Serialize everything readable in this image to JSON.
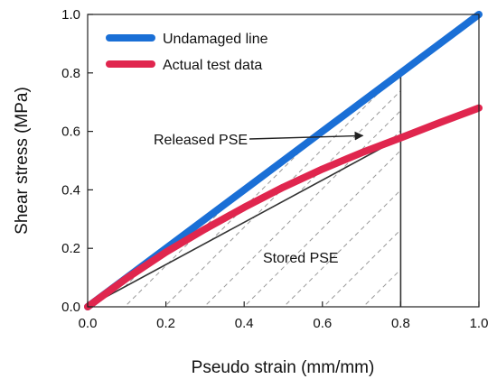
{
  "chart_data": {
    "type": "line",
    "xlabel": "Pseudo strain (mm/mm)",
    "ylabel": "Shear stress (MPa)",
    "xlim": [
      0,
      1
    ],
    "ylim": [
      0,
      1
    ],
    "x_ticks": [
      0.0,
      0.2,
      0.4,
      0.6,
      0.8,
      1.0
    ],
    "y_ticks": [
      0.0,
      0.2,
      0.4,
      0.6,
      0.8,
      1.0
    ],
    "x_tick_labels": [
      "0.0",
      "0.2",
      "0.4",
      "0.6",
      "0.8",
      "1.0"
    ],
    "y_tick_labels": [
      "0.0",
      "0.2",
      "0.4",
      "0.6",
      "0.8",
      "1.0"
    ],
    "grid": false,
    "legend_position": "top-left",
    "series": [
      {
        "name": "Undamaged line",
        "color": "#1a6fd6",
        "x": [
          0,
          0.2,
          0.4,
          0.6,
          0.8,
          1.0
        ],
        "y": [
          0,
          0.2,
          0.4,
          0.6,
          0.8,
          1.0
        ]
      },
      {
        "name": "Actual test data",
        "color": "#e0264e",
        "x": [
          0,
          0.1,
          0.2,
          0.3,
          0.4,
          0.5,
          0.6,
          0.7,
          0.8,
          0.9,
          1.0
        ],
        "y": [
          0,
          0.098,
          0.187,
          0.266,
          0.34,
          0.409,
          0.471,
          0.527,
          0.578,
          0.63,
          0.68
        ]
      }
    ],
    "reference_lines": [
      {
        "kind": "secant",
        "from": [
          0,
          0
        ],
        "to": [
          0.8,
          0.578
        ],
        "color": "#333333"
      },
      {
        "kind": "vertical",
        "x": 0.8,
        "y_from": 0,
        "y_to": 0.8,
        "color": "#333333"
      }
    ],
    "annotations": [
      {
        "text": "Released PSE",
        "arrow_to": [
          0.68,
          0.57
        ]
      },
      {
        "text": "Stored PSE"
      }
    ]
  }
}
